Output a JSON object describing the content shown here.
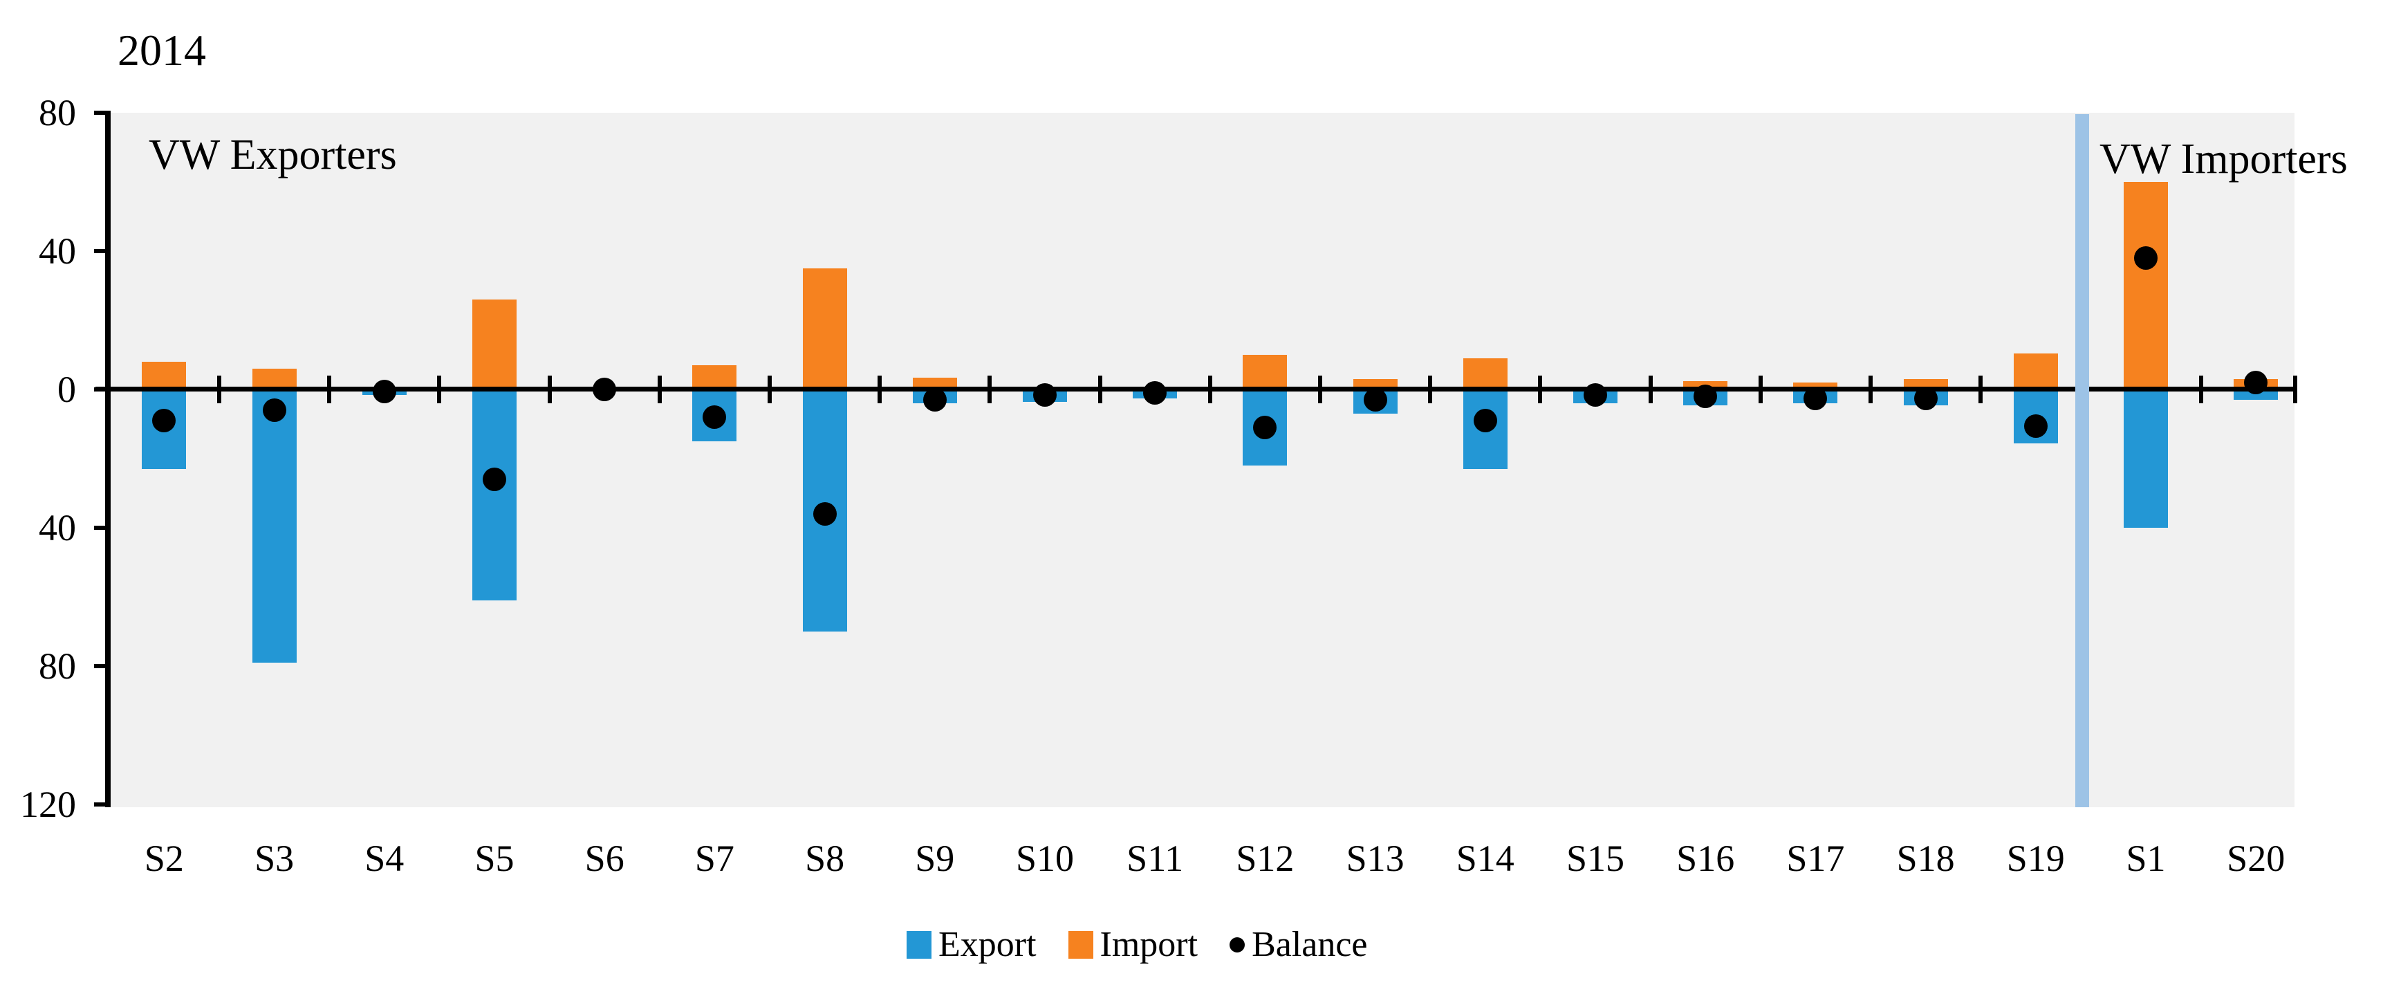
{
  "title": "2014",
  "region_labels": {
    "exporters": "VW Exporters",
    "importers": "VW Importers"
  },
  "colors": {
    "export": "#2397d5",
    "import": "#f6821f",
    "balance": "#000000",
    "separator": "#9dc3e6",
    "plot_bg": "#f1f1f1",
    "axis": "#000000"
  },
  "legend": {
    "items": [
      {
        "label": "Export",
        "swatch": "square",
        "color": "#2397d5"
      },
      {
        "label": "Import",
        "swatch": "square",
        "color": "#f6821f"
      },
      {
        "label": "Balance",
        "swatch": "dot",
        "color": "#000000"
      }
    ]
  },
  "y_axis": {
    "ticks": [
      {
        "value": 80,
        "label": "80"
      },
      {
        "value": 40,
        "label": "40"
      },
      {
        "value": 0,
        "label": "0"
      },
      {
        "value": -40,
        "label": "40"
      },
      {
        "value": -80,
        "label": "80"
      },
      {
        "value": -120,
        "label": "120"
      }
    ]
  },
  "chart_data": {
    "type": "bar",
    "title": "2014",
    "categories": [
      "S2",
      "S3",
      "S4",
      "S5",
      "S6",
      "S7",
      "S8",
      "S9",
      "S10",
      "S11",
      "S12",
      "S13",
      "S14",
      "S15",
      "S16",
      "S17",
      "S18",
      "S19",
      "S1",
      "S20"
    ],
    "series": [
      {
        "name": "Export",
        "render": "bar-down",
        "color": "#2397d5",
        "values": [
          23,
          79,
          1.5,
          61,
          0,
          15,
          70,
          4,
          3.5,
          2.5,
          22,
          7,
          23,
          4,
          4.5,
          4,
          4.5,
          15.5,
          40,
          3
        ]
      },
      {
        "name": "Import",
        "render": "bar-up",
        "color": "#f6821f",
        "values": [
          8,
          6,
          0,
          26,
          0,
          7,
          35,
          3.5,
          0,
          0,
          10,
          3,
          9,
          0,
          2.5,
          2,
          3,
          10.5,
          60,
          3
        ]
      },
      {
        "name": "Balance",
        "render": "point",
        "color": "#000000",
        "values": [
          -9,
          -6,
          -0.5,
          -26,
          0,
          -8,
          -36,
          -3,
          -1.5,
          -1,
          -11,
          -3,
          -9,
          -1.5,
          -2,
          -2.5,
          -2.5,
          -10.5,
          38,
          2
        ]
      }
    ],
    "groups": [
      {
        "label": "VW Exporters",
        "first_category": "S2",
        "last_category": "S19"
      },
      {
        "label": "VW Importers",
        "first_category": "S1",
        "last_category": "S20"
      }
    ],
    "separator_after_category": "S19",
    "ylim": [
      -120,
      80
    ],
    "y_tick_step": 40,
    "legend_position": "bottom"
  }
}
